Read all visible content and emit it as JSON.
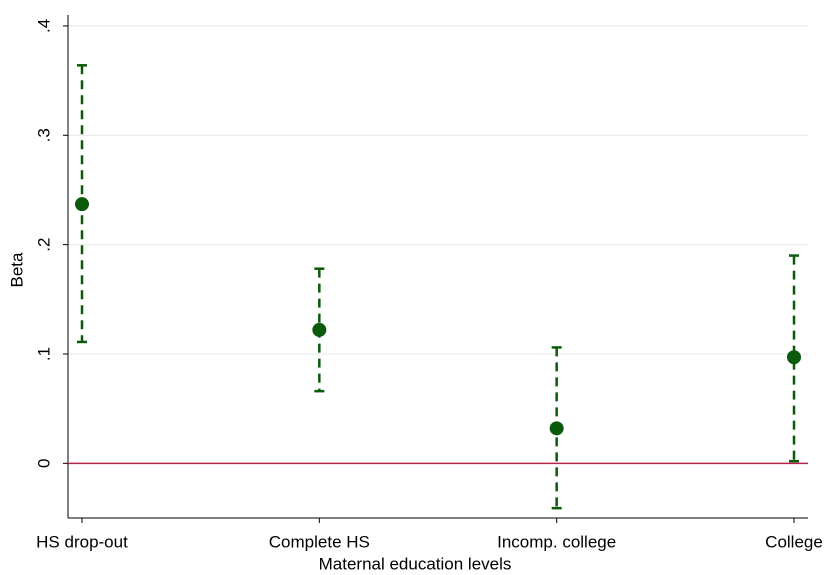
{
  "chart_data": {
    "type": "errorbar",
    "x_label": "Maternal education levels",
    "y_label": "Beta",
    "categories": [
      "HS drop-out",
      "Complete HS",
      "Incomp. college",
      "College"
    ],
    "values": [
      0.237,
      0.122,
      0.032,
      0.097
    ],
    "lower": [
      0.111,
      0.066,
      -0.041,
      0.002
    ],
    "upper": [
      0.364,
      0.178,
      0.106,
      0.19
    ],
    "color": "#0b5a0b",
    "ylim": [
      -0.05,
      0.41
    ],
    "yticks": [
      0,
      {
        "value": 0.1,
        "label": ".1"
      },
      {
        "value": 0.2,
        "label": ".2"
      },
      {
        "value": 0.3,
        "label": ".3"
      },
      {
        "value": 0.4,
        "label": ".4"
      }
    ],
    "grid": true,
    "reference_line": {
      "value": 0,
      "color": "#b3264a"
    }
  }
}
